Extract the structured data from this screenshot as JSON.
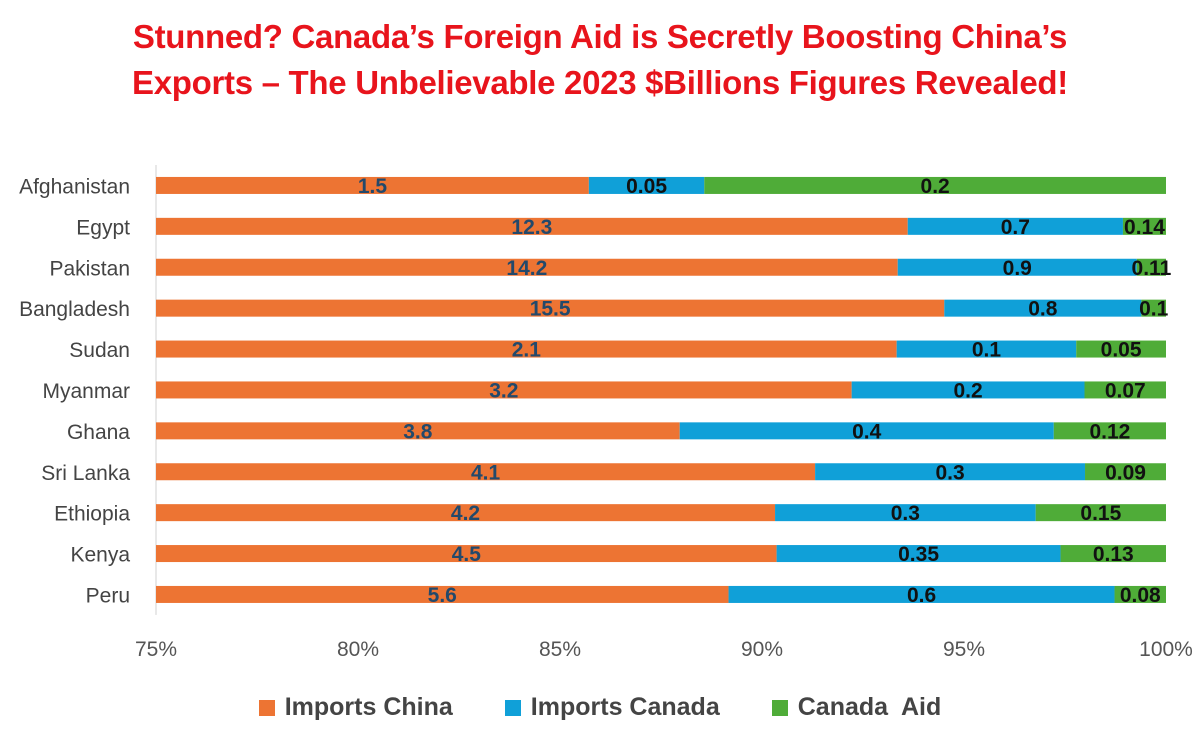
{
  "title_lines": [
    "Stunned? Canada’s Foreign Aid is Secretly Boosting China’s",
    "Exports – The Unbelievable 2023 $Billions Figures Revealed!"
  ],
  "colors": {
    "china": "#ed7433",
    "canada": "#10a0d8",
    "aid": "#4fac38",
    "title": "#e8141c"
  },
  "chart_data": {
    "type": "bar",
    "orientation": "horizontal",
    "stacked": "percent",
    "title": "Stunned? Canada’s Foreign Aid is Secretly Boosting China’s Exports – The Unbelievable 2023 $Billions Figures Revealed!",
    "categories": [
      "Afghanistan",
      "Egypt",
      "Pakistan",
      "Bangladesh",
      "Sudan",
      "Myanmar",
      "Ghana",
      "Sri Lanka",
      "Ethiopia",
      "Kenya",
      "Peru"
    ],
    "series": [
      {
        "name": "Imports China",
        "values": [
          1.5,
          12.3,
          14.2,
          15.5,
          2.1,
          3.2,
          3.8,
          4.1,
          4.2,
          4.5,
          5.6
        ]
      },
      {
        "name": "Imports Canada",
        "values": [
          0.05,
          0.7,
          0.9,
          0.8,
          0.1,
          0.2,
          0.4,
          0.3,
          0.3,
          0.35,
          0.6
        ]
      },
      {
        "name": "Canada  Aid",
        "values": [
          0.2,
          0.14,
          0.11,
          0.1,
          0.05,
          0.07,
          0.12,
          0.09,
          0.15,
          0.13,
          0.08
        ]
      }
    ],
    "data_labels": [
      [
        "1.5",
        "12.3",
        "14.2",
        "15.5",
        "2.1",
        "3.2",
        "3.8",
        "4.1",
        "4.2",
        "4.5",
        "5.6"
      ],
      [
        "0.05",
        "0.7",
        "0.9",
        "0.8",
        "0.1",
        "0.2",
        "0.4",
        "0.3",
        "0.3",
        "0.35",
        "0.6"
      ],
      [
        "0.2",
        "0.14",
        "0.11",
        "0.1",
        "0.05",
        "0.07",
        "0.12",
        "0.09",
        "0.15",
        "0.13",
        "0.08"
      ]
    ],
    "xlim": [
      0.75,
      1.0
    ],
    "xticks": [
      0.75,
      0.8,
      0.85,
      0.9,
      0.95,
      1.0
    ],
    "xtick_labels": [
      "75%",
      "80%",
      "85%",
      "90%",
      "95%",
      "100%"
    ],
    "legend": "bottom",
    "grid": false
  }
}
